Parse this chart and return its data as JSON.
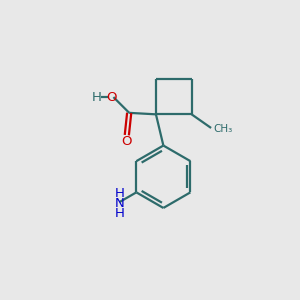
{
  "background_color": "#e8e8e8",
  "bond_color": "#2d6b6b",
  "bond_width": 1.6,
  "atom_colors": {
    "O": "#cc0000",
    "N": "#0000cc",
    "C": "#2d6b6b",
    "H": "#2d6b6b"
  },
  "figsize": [
    3.0,
    3.0
  ],
  "dpi": 100
}
